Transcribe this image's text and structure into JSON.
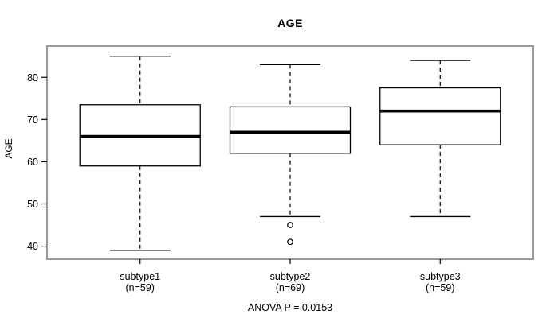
{
  "chart_data": {
    "type": "boxplot",
    "title": "AGE",
    "ylabel": "AGE",
    "xlabel": "",
    "annotation": "ANOVA P = 0.0153",
    "yticks": [
      40,
      50,
      60,
      70,
      80
    ],
    "ylim": [
      36.9,
      87.4
    ],
    "grid": false,
    "legend": null,
    "groups": [
      {
        "label": "subtype1",
        "sublabel": "(n=59)",
        "low": 39,
        "q1": 59,
        "median": 66,
        "q3": 73.5,
        "high": 85,
        "outliers": []
      },
      {
        "label": "subtype2",
        "sublabel": "(n=69)",
        "low": 47,
        "q1": 62,
        "median": 67,
        "q3": 73,
        "high": 83,
        "outliers": [
          45,
          41
        ]
      },
      {
        "label": "subtype3",
        "sublabel": "(n=59)",
        "low": 47,
        "q1": 64,
        "median": 72,
        "q3": 77.5,
        "high": 84,
        "outliers": []
      }
    ],
    "colors": {
      "frame": "#7f7f7f",
      "line": "#000000",
      "median": "#000000",
      "text": "#000000",
      "background": "#ffffff"
    }
  }
}
